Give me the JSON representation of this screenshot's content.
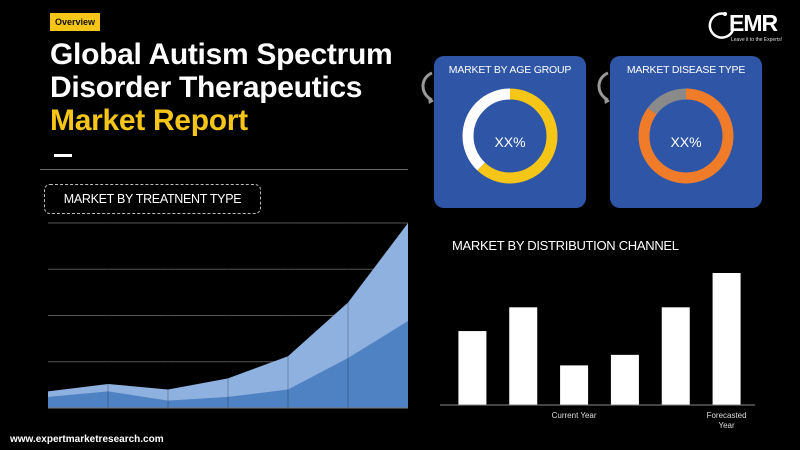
{
  "header": {
    "badge": "Overview",
    "title_line1": "Global Autism Spectrum",
    "title_line2": "Disorder Therapeutics",
    "title_line3": "Market Report"
  },
  "logo": {
    "mark": "EMR",
    "tagline": "Leave it to the Experts!"
  },
  "footer": {
    "url": "www.expertmarketresearch.com"
  },
  "colors": {
    "accent": "#f5c518",
    "card": "#2f56a6",
    "area_light": "#8fb1e0",
    "area_dark": "#4f82c2",
    "donut_age": "#f5c518",
    "donut_disease": "#f07c2a"
  },
  "chart_data": [
    {
      "type": "area",
      "title": "MARKET  BY TREATNENT TYPE",
      "x": [
        1,
        2,
        3,
        4,
        5,
        6,
        7
      ],
      "series": [
        {
          "values": [
            9,
            13,
            10,
            16,
            28,
            57,
            100
          ]
        },
        {
          "values": [
            6,
            9,
            4,
            6,
            10,
            27,
            47
          ]
        }
      ],
      "ylim": [
        0,
        100
      ],
      "grid": true
    },
    {
      "type": "pie",
      "title": "MARKET BY AGE GROUP",
      "center_label": "XX%",
      "values": [
        62,
        38
      ],
      "colors": [
        "#f5c518",
        "#ffffff"
      ]
    },
    {
      "type": "pie",
      "title": "MARKET DISEASE TYPE",
      "center_label": "XX%",
      "values": [
        85,
        15
      ],
      "colors": [
        "#f07c2a",
        "#8a8a8a"
      ]
    },
    {
      "type": "bar",
      "title": "MARKET BY DISTRIBUTION CHANNEL",
      "categories": [
        "",
        "",
        "Current Year",
        "",
        "",
        "Forecasted Year"
      ],
      "values": [
        56,
        74,
        30,
        38,
        74,
        100
      ],
      "ylim": [
        0,
        100
      ]
    }
  ]
}
